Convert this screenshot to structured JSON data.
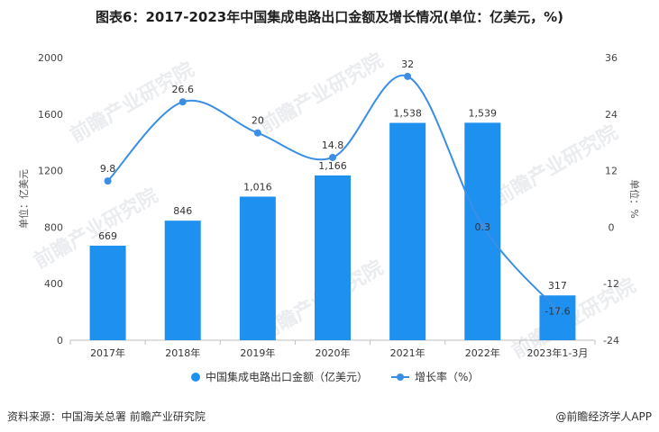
{
  "chart_data": {
    "type": "bar+line",
    "title": "图表6：2017-2023年中国集成电路出口金额及增长情况(单位：亿美元，%)",
    "categories": [
      "2017年",
      "2018年",
      "2019年",
      "2020年",
      "2021年",
      "2022年",
      "2023年1-3月"
    ],
    "series": [
      {
        "name": "中国集成电路出口金额（亿美元）",
        "type": "bar",
        "axis": "left",
        "color": "#1e90f0",
        "values": [
          669,
          846,
          1016,
          1166,
          1538,
          1539,
          317
        ],
        "labels": [
          "669",
          "846",
          "1,016",
          "1,166",
          "1,538",
          "1,539",
          "317"
        ]
      },
      {
        "name": "增长率（%）",
        "type": "line",
        "axis": "right",
        "color": "#3a8ee6",
        "values": [
          9.8,
          26.6,
          20,
          14.8,
          32,
          0.3,
          -17.6
        ],
        "labels": [
          "9.8",
          "26.6",
          "20",
          "14.8",
          "32",
          "0.3",
          "-17.6"
        ]
      }
    ],
    "ylabel_left": "单位：亿美元",
    "ylabel_right": "单位：%",
    "ylim_left": [
      0,
      2000
    ],
    "yticks_left": [
      "0",
      "400",
      "800",
      "1200",
      "1600",
      "2000"
    ],
    "ylim_right": [
      -24,
      36
    ],
    "yticks_right": [
      "-24",
      "-12",
      "0",
      "12",
      "24",
      "36"
    ],
    "grid": false,
    "legend": "bottom-center"
  },
  "watermark_text": "前瞻产业研究院",
  "footer": {
    "source": "资料来源：中国海关总署 前瞻产业研究院",
    "brand": "@前瞻经济学人APP"
  }
}
